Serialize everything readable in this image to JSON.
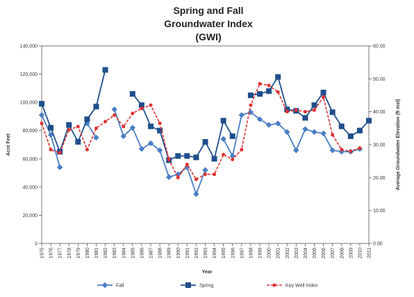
{
  "chart_data": {
    "type": "line",
    "title_lines": [
      "Spring and Fall",
      "Groundwater Index",
      "(GWI)"
    ],
    "xlabel": "Year",
    "ylabel": "Acre Feet",
    "y2label": "Average Groundwater Elevation (ft msl)",
    "categories": [
      "1975",
      "1976",
      "1977",
      "1978",
      "1979",
      "1980",
      "1981",
      "1982",
      "1983",
      "1984",
      "1985",
      "1986",
      "1987",
      "1988",
      "1989",
      "1990",
      "1991",
      "1992",
      "1993",
      "1994",
      "1995",
      "1996",
      "1997",
      "1998",
      "1999",
      "2000",
      "2001",
      "2002",
      "2003",
      "2004",
      "2005",
      "2006",
      "2007",
      "2008",
      "2009",
      "2010",
      "2011"
    ],
    "ylim": [
      0,
      140000
    ],
    "y_ticks": [
      0,
      20000,
      40000,
      60000,
      80000,
      100000,
      120000,
      140000
    ],
    "y_tick_labels": [
      "0",
      "20,000",
      "40,000",
      "60,000",
      "80,000",
      "100,000",
      "120,000",
      "140,000"
    ],
    "y2lim": [
      0,
      60
    ],
    "y2_ticks": [
      0,
      10,
      20,
      30,
      40,
      50,
      60
    ],
    "y2_tick_labels": [
      "0.00",
      "10.00",
      "20.00",
      "30.00",
      "40.00",
      "50.00",
      "60.00"
    ],
    "grid": false,
    "legend_position": "bottom",
    "series": [
      {
        "name": "Fall",
        "axis": "left",
        "color": "#4a7ec4",
        "marker": "diamond",
        "dashed": false,
        "values": [
          91000,
          77000,
          54000,
          null,
          null,
          85000,
          75000,
          null,
          95000,
          76000,
          82000,
          67000,
          71000,
          66000,
          47000,
          49000,
          54000,
          35000,
          52000,
          null,
          74000,
          62000,
          91000,
          93000,
          88000,
          84000,
          85000,
          79000,
          66000,
          81000,
          79000,
          78000,
          66000,
          65000,
          65000,
          67000,
          null
        ]
      },
      {
        "name": "Spring",
        "axis": "left",
        "color": "#1f4e8c",
        "marker": "square",
        "dashed": false,
        "values": [
          99000,
          82000,
          65000,
          84000,
          72000,
          88000,
          97000,
          123000,
          null,
          null,
          106000,
          98000,
          83000,
          80000,
          59000,
          62000,
          62000,
          61000,
          72000,
          60000,
          87000,
          76000,
          null,
          105000,
          106000,
          108000,
          118000,
          95000,
          94000,
          89000,
          98000,
          107000,
          93000,
          83000,
          76000,
          80000,
          87000
        ]
      },
      {
        "name": "Key Well Index",
        "axis": "right",
        "color": "#e03030",
        "marker": "circle",
        "dashed": true,
        "values": [
          36.5,
          28.5,
          27.5,
          34.5,
          35.5,
          28.5,
          35.0,
          37.0,
          39.0,
          35.5,
          39.5,
          41.0,
          42.0,
          36.5,
          25.5,
          20.0,
          24.0,
          19.5,
          21.0,
          21.0,
          27.0,
          25.5,
          28.5,
          42.0,
          48.5,
          48.0,
          46.0,
          40.0,
          40.5,
          40.0,
          40.5,
          44.5,
          33.0,
          28.5,
          28.0,
          29.0,
          null
        ]
      }
    ]
  }
}
